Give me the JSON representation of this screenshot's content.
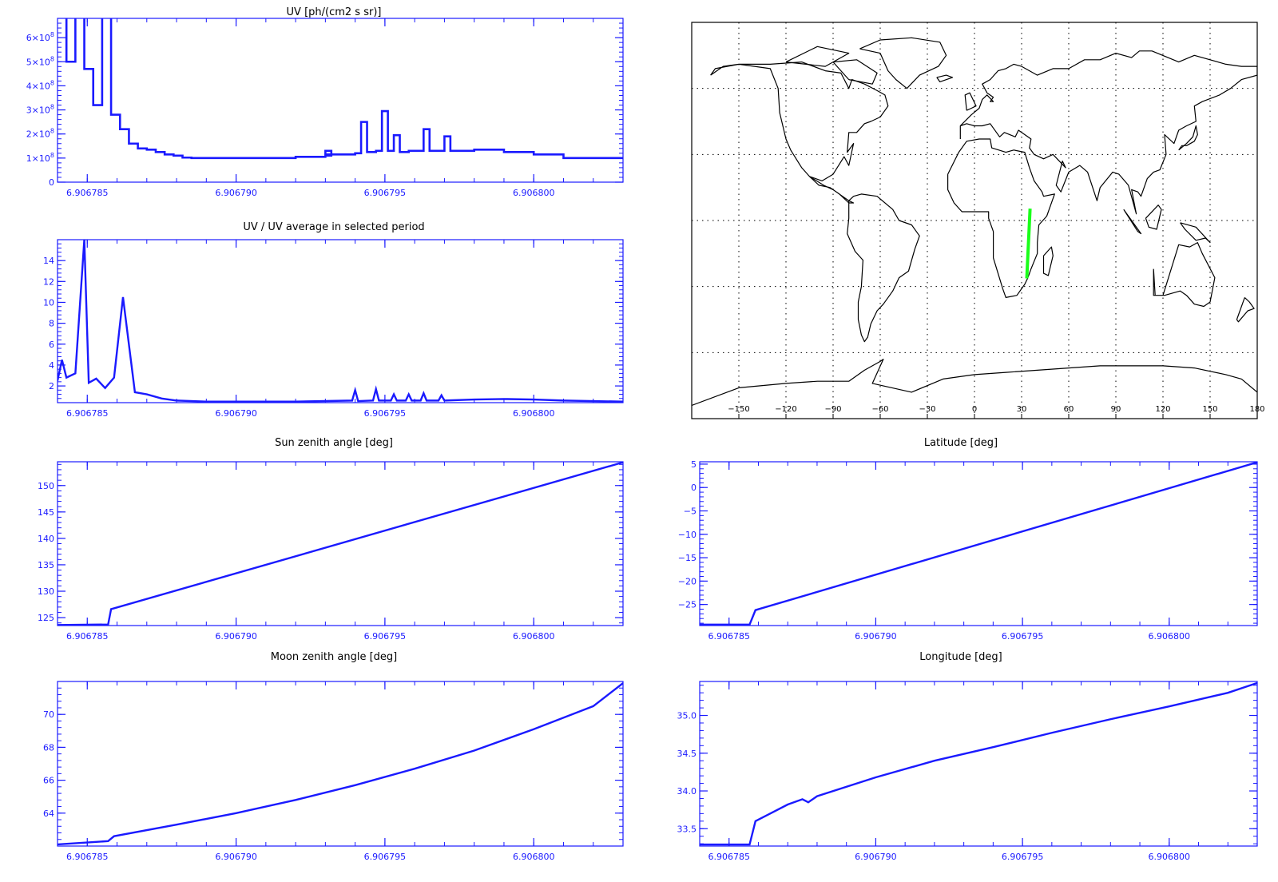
{
  "colors": {
    "plot": "#1a1aff",
    "track": "#1aff1a",
    "map": "#000000"
  },
  "chart_data": [
    {
      "id": "uv",
      "type": "line",
      "step": true,
      "title": "UV [ph/(cm2 s sr)]",
      "xlim": [
        6.906784,
        6.906803
      ],
      "ylim": [
        0,
        680000000.0
      ],
      "xticks": [
        6.906785,
        6.90679,
        6.906795,
        6.9068
      ],
      "xticklabels": [
        "6.906785",
        "6.906790",
        "6.906795",
        "6.906800"
      ],
      "yticks": [
        0,
        100000000.0,
        200000000.0,
        300000000.0,
        400000000.0,
        500000000.0,
        600000000.0
      ],
      "yticklabels": [
        {
          "base": "0",
          "exp": ""
        },
        {
          "base": "1×10",
          "exp": "8"
        },
        {
          "base": "2×10",
          "exp": "8"
        },
        {
          "base": "3×10",
          "exp": "8"
        },
        {
          "base": "4×10",
          "exp": "8"
        },
        {
          "base": "5×10",
          "exp": "8"
        },
        {
          "base": "6×10",
          "exp": "8"
        }
      ],
      "x": [
        6.906784,
        6.9067843,
        6.9067846,
        6.9067849,
        6.9067852,
        6.9067855,
        6.9067858,
        6.9067861,
        6.9067864,
        6.9067867,
        6.906787,
        6.9067873,
        6.9067876,
        6.9067879,
        6.9067882,
        6.9067885,
        6.906789,
        6.906791,
        6.906792,
        6.906793,
        6.9067932,
        6.906793,
        6.906794,
        6.9067942,
        6.9067944,
        6.9067947,
        6.9067949,
        6.9067951,
        6.9067953,
        6.9067955,
        6.9067958,
        6.9067963,
        6.9067965,
        6.906797,
        6.9067972,
        6.9067975,
        6.906798,
        6.906799,
        6.9068,
        6.906801,
        6.906803
      ],
      "values": [
        900000000.0,
        500000000.0,
        900000000.0,
        470000000.0,
        320000000.0,
        900000000.0,
        280000000.0,
        220000000.0,
        160000000.0,
        140000000.0,
        135000000.0,
        125000000.0,
        115000000.0,
        110000000.0,
        102000000.0,
        100000000.0,
        100000000.0,
        100000000.0,
        105000000.0,
        110000000.0,
        130000000.0,
        115000000.0,
        120000000.0,
        250000000.0,
        125000000.0,
        130000000.0,
        295000000.0,
        130000000.0,
        195000000.0,
        125000000.0,
        130000000.0,
        220000000.0,
        130000000.0,
        190000000.0,
        130000000.0,
        130000000.0,
        135000000.0,
        125000000.0,
        115000000.0,
        100000000.0,
        100000000.0
      ]
    },
    {
      "id": "uvratio",
      "type": "line",
      "title": "UV / UV average in selected period",
      "xlim": [
        6.906784,
        6.906803
      ],
      "ylim": [
        0.4,
        16
      ],
      "xticks": [
        6.906785,
        6.90679,
        6.906795,
        6.9068
      ],
      "xticklabels": [
        "6.906785",
        "6.906790",
        "6.906795",
        "6.906800"
      ],
      "yticks": [
        2,
        4,
        6,
        8,
        10,
        12,
        14
      ],
      "yticklabels": [
        "2",
        "4",
        "6",
        "8",
        "10",
        "12",
        "14"
      ],
      "x": [
        6.906784,
        6.90678415,
        6.9067843,
        6.9067846,
        6.9067849,
        6.90678505,
        6.9067853,
        6.9067856,
        6.9067859,
        6.9067862,
        6.9067866,
        6.906787,
        6.9067875,
        6.906788,
        6.906789,
        6.906792,
        6.9067939,
        6.906794,
        6.9067941,
        6.9067946,
        6.9067947,
        6.9067948,
        6.9067952,
        6.9067953,
        6.9067954,
        6.9067957,
        6.9067958,
        6.9067959,
        6.9067962,
        6.9067963,
        6.9067964,
        6.9067968,
        6.9067969,
        6.906797,
        6.906798,
        6.906799,
        6.9068,
        6.906801,
        6.906803
      ],
      "values": [
        2.5,
        4.5,
        2.8,
        3.2,
        16,
        2.3,
        2.7,
        1.8,
        2.8,
        10.5,
        1.4,
        1.2,
        0.8,
        0.6,
        0.5,
        0.5,
        0.6,
        1.6,
        0.55,
        0.6,
        1.7,
        0.6,
        0.6,
        1.2,
        0.6,
        0.6,
        1.2,
        0.6,
        0.6,
        1.3,
        0.6,
        0.6,
        1.1,
        0.6,
        0.7,
        0.75,
        0.7,
        0.6,
        0.5
      ]
    },
    {
      "id": "sunzen",
      "type": "line",
      "title": "Sun zenith angle [deg]",
      "xlim": [
        6.906784,
        6.906803
      ],
      "ylim": [
        123.5,
        154.5
      ],
      "xticks": [
        6.906785,
        6.90679,
        6.906795,
        6.9068
      ],
      "xticklabels": [
        "6.906785",
        "6.906790",
        "6.906795",
        "6.906800"
      ],
      "yticks": [
        125,
        130,
        135,
        140,
        145,
        150
      ],
      "yticklabels": [
        "125",
        "130",
        "135",
        "140",
        "145",
        "150"
      ],
      "x": [
        6.906784,
        6.9067857,
        6.9067858,
        6.906803
      ],
      "values": [
        123.6,
        123.7,
        126.6,
        154.4
      ]
    },
    {
      "id": "latitude",
      "type": "line",
      "title": "Latitude [deg]",
      "xlim": [
        6.906784,
        6.906803
      ],
      "ylim": [
        -29.5,
        5.5
      ],
      "xticks": [
        6.906785,
        6.90679,
        6.906795,
        6.9068
      ],
      "xticklabels": [
        "6.906785",
        "6.906790",
        "6.906795",
        "6.906800"
      ],
      "yticks": [
        -25,
        -20,
        -15,
        -10,
        -5,
        0,
        5
      ],
      "yticklabels": [
        "−25",
        "−20",
        "−15",
        "−10",
        "−5",
        "0",
        "5"
      ],
      "x": [
        6.906784,
        6.9067857,
        6.9067859,
        6.906803
      ],
      "values": [
        -29.3,
        -29.3,
        -26.2,
        5.4
      ]
    },
    {
      "id": "moonzen",
      "type": "line",
      "title": "Moon zenith angle [deg]",
      "xlim": [
        6.906784,
        6.906803
      ],
      "ylim": [
        62.0,
        72.0
      ],
      "xticks": [
        6.906785,
        6.90679,
        6.906795,
        6.9068
      ],
      "xticklabels": [
        "6.906785",
        "6.906790",
        "6.906795",
        "6.906800"
      ],
      "yticks": [
        64,
        66,
        68,
        70
      ],
      "yticklabels": [
        "64",
        "66",
        "68",
        "70"
      ],
      "x": [
        6.906784,
        6.9067857,
        6.9067859,
        6.906788,
        6.90679,
        6.906792,
        6.906794,
        6.906796,
        6.906798,
        6.9068,
        6.906802,
        6.906803
      ],
      "values": [
        62.1,
        62.3,
        62.6,
        63.3,
        64.0,
        64.8,
        65.7,
        66.7,
        67.8,
        69.1,
        70.5,
        71.9
      ]
    },
    {
      "id": "longitude",
      "type": "line",
      "title": "Longitude [deg]",
      "xlim": [
        6.906784,
        6.906803
      ],
      "ylim": [
        33.27,
        35.45
      ],
      "xticks": [
        6.906785,
        6.90679,
        6.906795,
        6.9068
      ],
      "xticklabels": [
        "6.906785",
        "6.906790",
        "6.906795",
        "6.906800"
      ],
      "yticks": [
        33.5,
        34.0,
        34.5,
        35.0
      ],
      "yticklabels": [
        "33.5",
        "34.0",
        "34.5",
        "35.0"
      ],
      "x": [
        6.906784,
        6.9067857,
        6.9067859,
        6.906787,
        6.9067875,
        6.9067877,
        6.906788,
        6.90679,
        6.906792,
        6.906794,
        6.906796,
        6.906798,
        6.9068,
        6.906802,
        6.906803
      ],
      "values": [
        33.29,
        33.29,
        33.6,
        33.82,
        33.89,
        33.85,
        33.93,
        34.18,
        34.4,
        34.58,
        34.77,
        34.95,
        35.12,
        35.3,
        35.43
      ]
    }
  ],
  "map": {
    "xlim": [
      -180,
      180
    ],
    "ylim": [
      -90,
      90
    ],
    "xticklabels": [
      "−150",
      "−120",
      "−90",
      "−60",
      "−30",
      "0",
      "30",
      "60",
      "90",
      "120",
      "150",
      "180"
    ],
    "xticks": [
      -150,
      -120,
      -90,
      -60,
      -30,
      0,
      30,
      60,
      90,
      120,
      150,
      180
    ],
    "grid_lon": [
      -150,
      -120,
      -90,
      -60,
      -30,
      0,
      30,
      60,
      90,
      120,
      150
    ],
    "grid_lat": [
      -60,
      -30,
      0,
      30,
      60
    ],
    "track": {
      "lon": [
        33.3,
        35.4
      ],
      "lat": [
        -26.3,
        5.4
      ]
    },
    "coastlines": [
      {
        "name": "north-america",
        "lon": [
          -168,
          -160,
          -150,
          -140,
          -130,
          -125,
          -124,
          -120,
          -117,
          -110,
          -105,
          -97,
          -90,
          -83,
          -80,
          -77,
          -81,
          -80,
          -75,
          -70,
          -66,
          -60,
          -55,
          -57,
          -62,
          -70,
          -78,
          -80,
          -85,
          -95,
          -110,
          -130,
          -150,
          -165,
          -168
        ],
        "lat": [
          66,
          70,
          71,
          70,
          69,
          60,
          49,
          37,
          32,
          24,
          20,
          18,
          21,
          29,
          25,
          35,
          31,
          40,
          40,
          44,
          45,
          47,
          52,
          57,
          59,
          62,
          64,
          60,
          67,
          68,
          72,
          71,
          71,
          69,
          66
        ]
      },
      {
        "name": "central-america",
        "lon": [
          -105,
          -96,
          -90,
          -84,
          -80,
          -77,
          -80,
          -86,
          -92,
          -99,
          -105
        ],
        "lat": [
          20,
          16,
          14,
          11,
          9,
          8,
          8,
          12,
          15,
          16,
          20
        ]
      },
      {
        "name": "south-america",
        "lon": [
          -80,
          -77,
          -72,
          -62,
          -52,
          -48,
          -40,
          -35,
          -38,
          -42,
          -48,
          -52,
          -58,
          -62,
          -66,
          -68,
          -70,
          -72,
          -74,
          -74,
          -72,
          -71,
          -76,
          -81,
          -80,
          -80
        ],
        "lat": [
          9,
          11,
          12,
          11,
          5,
          0,
          -2,
          -7,
          -13,
          -23,
          -26,
          -32,
          -38,
          -41,
          -47,
          -53,
          -55,
          -52,
          -45,
          -37,
          -30,
          -18,
          -14,
          -6,
          1,
          9
        ]
      },
      {
        "name": "greenland",
        "lon": [
          -73,
          -60,
          -40,
          -22,
          -18,
          -23,
          -35,
          -43,
          -50,
          -55,
          -60,
          -73
        ],
        "lat": [
          78,
          82,
          83,
          81,
          75,
          70,
          66,
          60,
          64,
          68,
          76,
          78
        ]
      },
      {
        "name": "europe-asia",
        "lon": [
          -9,
          -9,
          -5,
          0,
          5,
          10,
          12,
          16,
          19,
          26,
          28,
          36,
          35,
          38,
          44,
          50,
          58,
          56,
          52,
          55,
          60,
          67,
          72,
          78,
          80,
          88,
          92,
          98,
          103,
          100,
          104,
          106,
          110,
          114,
          118,
          122,
          121,
          127,
          130,
          135,
          141,
          140,
          145,
          156,
          163,
          170,
          180,
          180,
          170,
          160,
          140,
          130,
          113,
          105,
          100,
          90,
          80,
          70,
          60,
          50,
          40,
          30,
          25,
          20,
          15,
          10,
          5,
          8,
          12,
          10,
          12,
          8,
          5,
          3,
          -2,
          -9
        ],
        "lat": [
          37,
          43,
          44,
          43,
          43,
          44,
          42,
          38,
          40,
          38,
          41,
          37,
          33,
          30,
          28,
          30,
          24,
          27,
          16,
          13,
          22,
          25,
          22,
          9,
          15,
          22,
          21,
          16,
          3,
          14,
          13,
          11,
          19,
          22,
          23,
          30,
          39,
          35,
          41,
          43,
          45,
          52,
          54,
          57,
          60,
          64,
          66,
          70,
          70,
          71,
          75,
          72,
          77,
          77,
          74,
          76,
          73,
          73,
          69,
          69,
          66,
          70,
          71,
          69,
          68,
          64,
          62,
          58,
          56,
          54,
          54,
          57,
          55,
          51,
          48,
          43
        ]
      },
      {
        "name": "africa",
        "lon": [
          -17,
          -10,
          -5,
          3,
          10,
          11,
          20,
          25,
          32,
          35,
          38,
          43,
          44,
          51,
          46,
          41,
          40,
          40,
          36,
          34,
          32,
          27,
          20,
          18,
          12,
          12,
          9,
          9,
          -8,
          -13,
          -17,
          -17
        ],
        "lat": [
          21,
          31,
          36,
          37,
          37,
          33,
          31,
          32,
          31,
          24,
          18,
          13,
          11,
          12,
          2,
          -2,
          -10,
          -15,
          -22,
          -26,
          -29,
          -34,
          -35,
          -31,
          -17,
          -5,
          1,
          4,
          4,
          8,
          14,
          21
        ]
      },
      {
        "name": "australia",
        "lon": [
          114,
          114,
          120,
          130,
          137,
          142,
          145,
          153,
          150,
          146,
          140,
          135,
          131,
          121,
          115,
          114
        ],
        "lat": [
          -22,
          -34,
          -34,
          -11,
          -12,
          -10,
          -15,
          -26,
          -37,
          -39,
          -38,
          -34,
          -32,
          -34,
          -34,
          -22
        ]
      },
      {
        "name": "antarctica",
        "lon": [
          -180,
          -150,
          -120,
          -100,
          -80,
          -70,
          -60,
          -58,
          -65,
          -40,
          -20,
          0,
          20,
          40,
          60,
          80,
          100,
          120,
          140,
          160,
          170,
          180
        ],
        "lat": [
          -84,
          -76,
          -74,
          -73,
          -73,
          -68,
          -64,
          -63,
          -74,
          -78,
          -72,
          -70,
          -69,
          -68,
          -67,
          -66,
          -66,
          -66,
          -67,
          -70,
          -72,
          -78
        ]
      },
      {
        "name": "madagascar",
        "lon": [
          44,
          49,
          50,
          47,
          44,
          44
        ],
        "lat": [
          -16,
          -12,
          -16,
          -25,
          -24,
          -16
        ]
      },
      {
        "name": "great-britain",
        "lon": [
          -5,
          -2,
          1,
          -3,
          -6,
          -5
        ],
        "lat": [
          50,
          51,
          52,
          58,
          57,
          50
        ]
      },
      {
        "name": "japan",
        "lon": [
          130,
          132,
          135,
          140,
          142,
          141,
          139,
          135,
          130
        ],
        "lat": [
          32,
          34,
          34,
          36,
          39,
          43,
          38,
          35,
          32
        ]
      },
      {
        "name": "new-zealand",
        "lon": [
          172,
          175,
          178,
          174,
          168,
          167,
          172
        ],
        "lat": [
          -35,
          -37,
          -40,
          -41,
          -46,
          -45,
          -35
        ]
      },
      {
        "name": "borneo",
        "lon": [
          109,
          117,
          119,
          116,
          111,
          109
        ],
        "lat": [
          1,
          7,
          5,
          -4,
          -3,
          1
        ]
      },
      {
        "name": "sumatra",
        "lon": [
          95,
          100,
          106,
          104,
          95
        ],
        "lat": [
          5,
          0,
          -6,
          -5,
          5
        ]
      },
      {
        "name": "new-guinea",
        "lon": [
          131,
          141,
          150,
          147,
          141,
          134,
          131
        ],
        "lat": [
          -1,
          -3,
          -10,
          -8,
          -9,
          -4,
          -1
        ]
      },
      {
        "name": "iceland",
        "lon": [
          -24,
          -18,
          -14,
          -22,
          -24
        ],
        "lat": [
          65,
          66,
          65,
          63,
          65
        ]
      },
      {
        "name": "baffin-island",
        "lon": [
          -80,
          -65,
          -62,
          -75,
          -90,
          -80
        ],
        "lat": [
          64,
          62,
          67,
          73,
          72,
          64
        ]
      },
      {
        "name": "arctic-islands",
        "lon": [
          -120,
          -95,
          -80,
          -100,
          -120
        ],
        "lat": [
          72,
          70,
          76,
          79,
          72
        ]
      }
    ]
  }
}
